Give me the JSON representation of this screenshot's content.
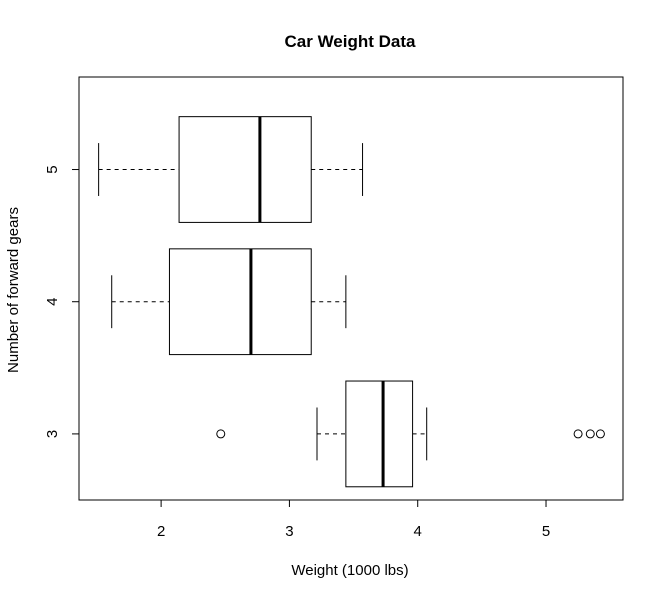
{
  "chart_data": {
    "type": "boxplot",
    "orientation": "horizontal",
    "title": "Car Weight Data",
    "xlabel": "Weight (1000 lbs)",
    "ylabel": "Number of forward gears",
    "xlim": [
      1.36,
      5.6
    ],
    "ylim": [
      0.5,
      3.7
    ],
    "x_ticks": [
      2,
      3,
      4,
      5
    ],
    "grid": false,
    "legend": "none",
    "colors": {
      "box_fill": "#ffffff",
      "stroke": "#000000"
    },
    "groups": [
      {
        "category": "3",
        "min": 3.215,
        "q1": 3.44,
        "median": 3.73,
        "q3": 3.96,
        "max": 4.07,
        "outliers": [
          2.465,
          5.25,
          5.345,
          5.424
        ]
      },
      {
        "category": "4",
        "min": 1.615,
        "q1": 2.065,
        "median": 2.7,
        "q3": 3.17,
        "max": 3.44,
        "outliers": []
      },
      {
        "category": "5",
        "min": 1.513,
        "q1": 2.14,
        "median": 2.77,
        "q3": 3.17,
        "max": 3.57,
        "outliers": []
      }
    ]
  }
}
